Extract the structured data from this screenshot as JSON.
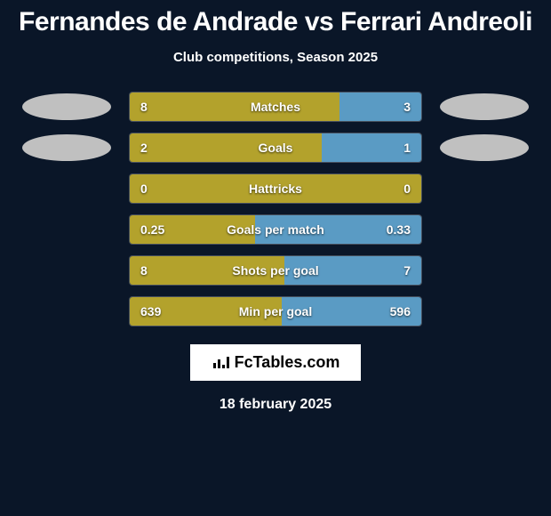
{
  "title": "Fernandes de Andrade vs Ferrari Andreoli",
  "subtitle": "Club competitions, Season 2025",
  "colors": {
    "left": "#b3a22c",
    "right": "#5a9bc4",
    "background": "#0a1628",
    "text": "#ffffff",
    "placeholder": "#c0c0c0"
  },
  "bars": [
    {
      "label": "Matches",
      "left_value": "8",
      "right_value": "3",
      "left_pct": 72,
      "right_pct": 28,
      "show_placeholders": true
    },
    {
      "label": "Goals",
      "left_value": "2",
      "right_value": "1",
      "left_pct": 66,
      "right_pct": 34,
      "show_placeholders": true
    },
    {
      "label": "Hattricks",
      "left_value": "0",
      "right_value": "0",
      "left_pct": 100,
      "right_pct": 0,
      "show_placeholders": false
    },
    {
      "label": "Goals per match",
      "left_value": "0.25",
      "right_value": "0.33",
      "left_pct": 43,
      "right_pct": 57,
      "show_placeholders": false
    },
    {
      "label": "Shots per goal",
      "left_value": "8",
      "right_value": "7",
      "left_pct": 53,
      "right_pct": 47,
      "show_placeholders": false
    },
    {
      "label": "Min per goal",
      "left_value": "639",
      "right_value": "596",
      "left_pct": 52,
      "right_pct": 48,
      "show_placeholders": false
    }
  ],
  "brand": "FcTables.com",
  "date": "18 february 2025",
  "typography": {
    "title_fontsize": 30,
    "subtitle_fontsize": 15,
    "bar_label_fontsize": 14,
    "brand_fontsize": 18,
    "date_fontsize": 16
  }
}
